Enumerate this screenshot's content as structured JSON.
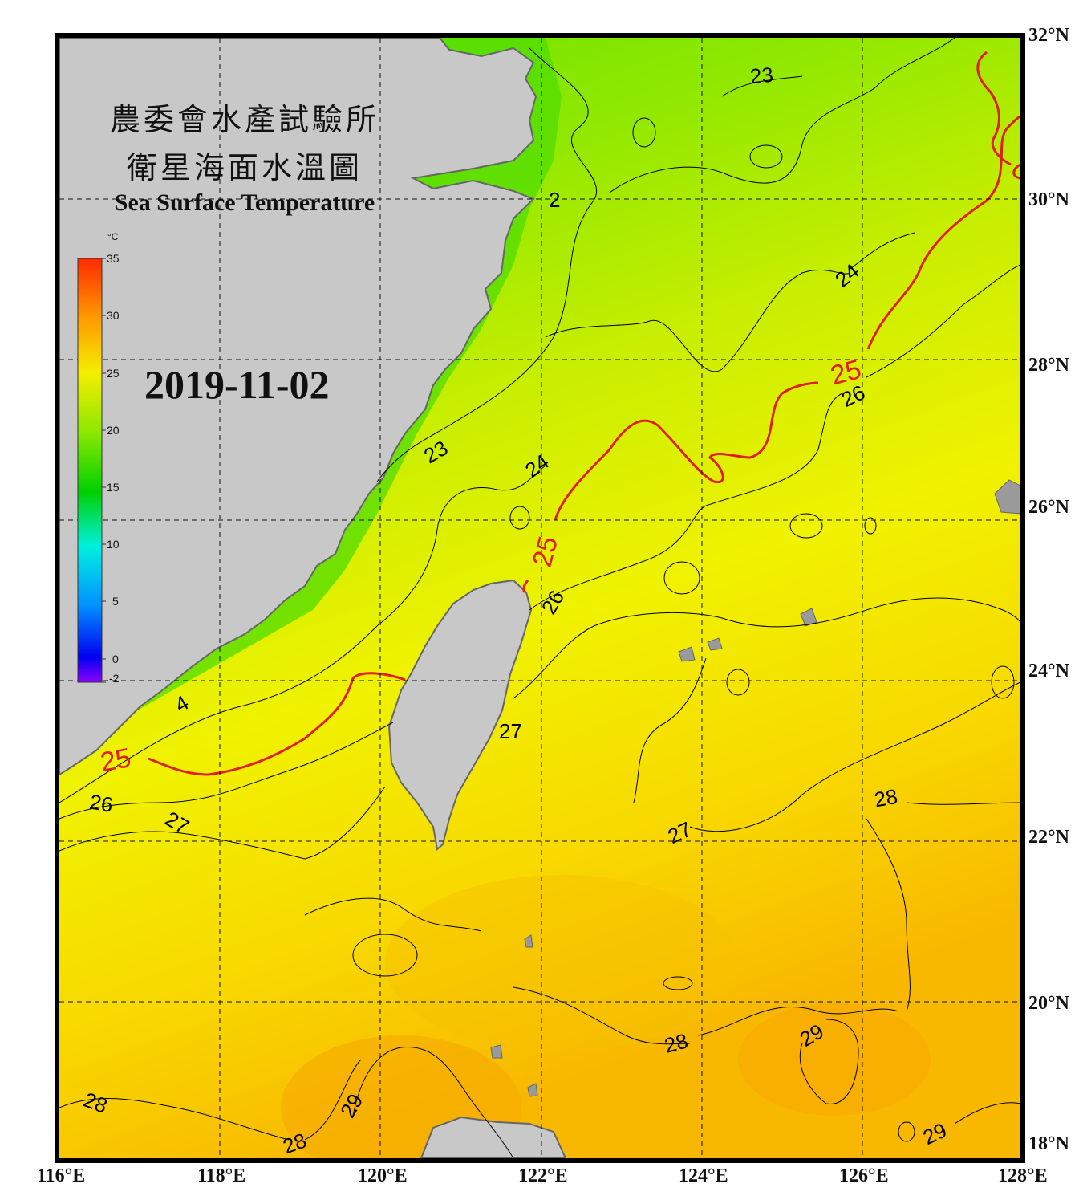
{
  "title": {
    "zh_line1": "農委會水產試驗所",
    "zh_line2": "衛星海面水溫圖",
    "en": "Sea Surface Temperature"
  },
  "date": "2019-11-02",
  "colorbar": {
    "unit": "°C",
    "ticks": [
      "35",
      "30",
      "25",
      "20",
      "15",
      "10",
      "5",
      "0",
      "-2"
    ],
    "colors": [
      "#ff2a00",
      "#ff9a00",
      "#f5ee00",
      "#8ce800",
      "#00d000",
      "#00f0e0",
      "#0090ff",
      "#0000f0",
      "#8c00ff"
    ]
  },
  "lat_labels": [
    "32°N",
    "30°N",
    "28°N",
    "26°N",
    "24°N",
    "22°N",
    "20°N",
    "18°N"
  ],
  "lon_labels": [
    "116°E",
    "118°E",
    "120°E",
    "122°E",
    "124°E",
    "126°E",
    "128°E"
  ],
  "contour_labels": [
    {
      "text": "23",
      "color": "#000000"
    },
    {
      "text": "24",
      "color": "#000000"
    },
    {
      "text": "25",
      "color": "#e0201e"
    },
    {
      "text": "26",
      "color": "#000000"
    },
    {
      "text": "23",
      "color": "#000000"
    },
    {
      "text": "24",
      "color": "#000000"
    },
    {
      "text": "25",
      "color": "#e0201e"
    },
    {
      "text": "26",
      "color": "#000000"
    },
    {
      "text": "27",
      "color": "#000000"
    },
    {
      "text": "25",
      "color": "#e0201e"
    },
    {
      "text": "26",
      "color": "#000000"
    },
    {
      "text": "27",
      "color": "#000000"
    },
    {
      "text": "27",
      "color": "#000000"
    },
    {
      "text": "28",
      "color": "#000000"
    },
    {
      "text": "28",
      "color": "#000000"
    },
    {
      "text": "29",
      "color": "#000000"
    },
    {
      "text": "28",
      "color": "#000000"
    },
    {
      "text": "29",
      "color": "#000000"
    },
    {
      "text": "28",
      "color": "#000000"
    },
    {
      "text": "29",
      "color": "#000000"
    },
    {
      "text": "4",
      "color": "#000000"
    },
    {
      "text": "2",
      "color": "#000000"
    }
  ],
  "colors": {
    "land": "#c8c8c8",
    "coast": "#666666",
    "contour_25": "#e0201e",
    "frame": "#000000"
  }
}
